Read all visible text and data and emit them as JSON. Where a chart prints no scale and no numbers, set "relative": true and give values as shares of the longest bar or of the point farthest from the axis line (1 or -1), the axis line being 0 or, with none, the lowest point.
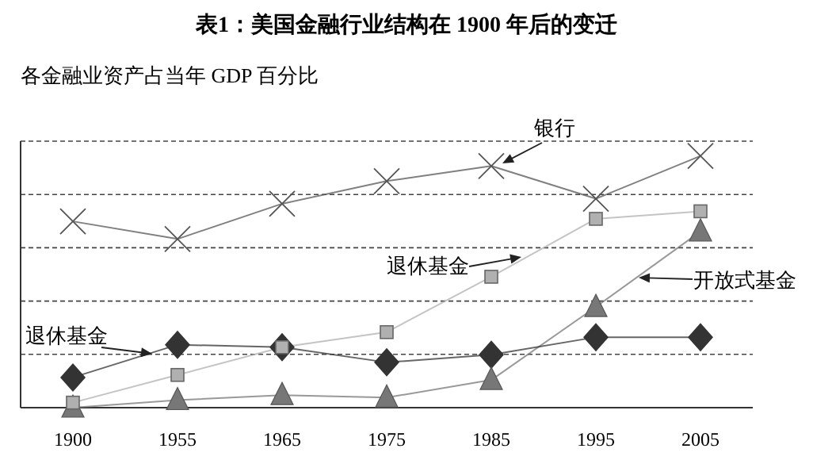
{
  "chart_data": {
    "type": "line",
    "title": "表1：美国金融行业结构在 1900 年后的变迁",
    "ylabel": "各金融业资产占当年 GDP 百分比",
    "categories": [
      "1900",
      "1955",
      "1965",
      "1975",
      "1985",
      "1995",
      "2005"
    ],
    "relative": true,
    "grid": "y",
    "line_style": "solid",
    "series": [
      {
        "name": "银行",
        "color": "#555555",
        "marker": "cross",
        "values": [
          0.74,
          0.67,
          0.81,
          0.9,
          0.96,
          0.83,
          1.0
        ]
      },
      {
        "name": "退休基金",
        "color": "#b0b0b0",
        "marker": "square",
        "values": [
          0.02,
          0.13,
          0.24,
          0.3,
          0.52,
          0.75,
          0.78
        ]
      },
      {
        "name": "开放式基金",
        "color": "#777777",
        "marker": "triangle",
        "values": [
          0,
          0.03,
          0.05,
          0.04,
          0.11,
          0.4,
          0.7
        ]
      },
      {
        "name": "退休基金",
        "color": "#333333",
        "marker": "diamond",
        "values": [
          0.12,
          0.25,
          0.24,
          0.18,
          0.21,
          0.28,
          0.28
        ]
      }
    ]
  }
}
